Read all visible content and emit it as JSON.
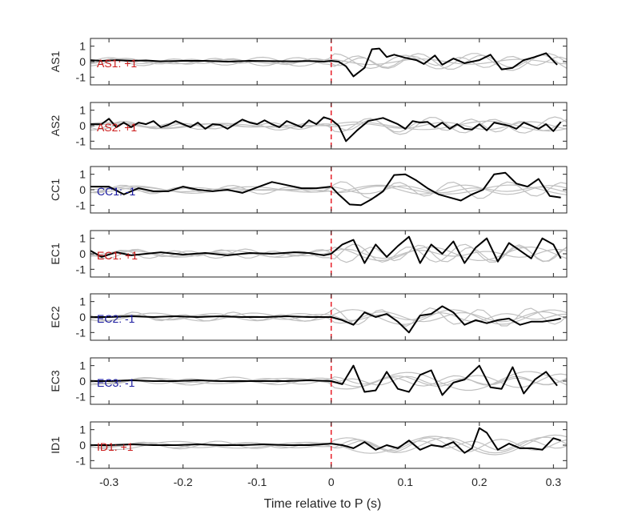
{
  "chart_data": {
    "type": "line",
    "xlabel": "Time relative to P (s)",
    "xlim": [
      -0.325,
      0.318
    ],
    "xticks": [
      -0.3,
      -0.2,
      -0.1,
      0,
      0.1,
      0.2,
      0.3
    ],
    "xtick_labels": [
      "-0.3",
      "-0.2",
      "-0.1",
      "0",
      "0.1",
      "0.2",
      "0.3"
    ],
    "ylim": [
      -1.5,
      1.5
    ],
    "yticks": [
      -1,
      0,
      1
    ],
    "ytick_labels": [
      "-1",
      "0",
      "1"
    ],
    "grid": false,
    "vertical_marker": {
      "x": 0,
      "color": "#e8202a",
      "style": "dashed"
    },
    "colors": {
      "main": "#000000",
      "background": "#c0c0c0",
      "positive": "#cc1a1a",
      "negative": "#1a1aa0",
      "axes": "#262626"
    },
    "panels": [
      {
        "ylabel": "AS1",
        "annotation": "AS1: +1",
        "annotation_color": "#cc1a1a",
        "series": [
          {
            "x": [
              -0.325,
              -0.31,
              -0.29,
              -0.27,
              -0.25,
              -0.23,
              -0.2,
              -0.17,
              -0.14,
              -0.11,
              -0.08,
              -0.05,
              -0.03,
              -0.01,
              0,
              0.01,
              0.02,
              0.03,
              0.045,
              0.055,
              0.065,
              0.075,
              0.085,
              0.1,
              0.115,
              0.125,
              0.14,
              0.15,
              0.165,
              0.18,
              0.2,
              0.215,
              0.23,
              0.245,
              0.26,
              0.275,
              0.29,
              0.305
            ],
            "y": [
              0.1,
              0.05,
              0.1,
              0.05,
              0.08,
              0.02,
              0.05,
              0.05,
              0.0,
              0.05,
              0.03,
              0.02,
              0.04,
              0.0,
              0.05,
              0.0,
              -0.3,
              -0.95,
              -0.4,
              0.8,
              0.85,
              0.3,
              0.45,
              0.25,
              0.1,
              -0.15,
              0.4,
              -0.2,
              0.2,
              -0.1,
              0.1,
              0.45,
              -0.5,
              -0.4,
              0.1,
              0.3,
              0.55,
              -0.2
            ]
          }
        ]
      },
      {
        "ylabel": "AS2",
        "annotation": "AS2: +1",
        "annotation_color": "#cc1a1a",
        "series": [
          {
            "x": [
              -0.325,
              -0.31,
              -0.3,
              -0.29,
              -0.28,
              -0.27,
              -0.26,
              -0.25,
              -0.24,
              -0.23,
              -0.22,
              -0.21,
              -0.2,
              -0.19,
              -0.18,
              -0.17,
              -0.16,
              -0.15,
              -0.14,
              -0.13,
              -0.12,
              -0.11,
              -0.1,
              -0.09,
              -0.08,
              -0.07,
              -0.06,
              -0.05,
              -0.04,
              -0.03,
              -0.02,
              -0.01,
              0,
              0.01,
              0.02,
              0.035,
              0.05,
              0.07,
              0.08,
              0.09,
              0.1,
              0.11,
              0.12,
              0.13,
              0.14,
              0.15,
              0.16,
              0.17,
              0.18,
              0.19,
              0.2,
              0.21,
              0.22,
              0.23,
              0.24,
              0.25,
              0.26,
              0.27,
              0.28,
              0.29,
              0.3,
              0.31
            ],
            "y": [
              0.1,
              0.1,
              0.45,
              -0.1,
              0.2,
              -0.1,
              0.2,
              0.1,
              0.3,
              -0.1,
              0.05,
              0.3,
              0.1,
              -0.1,
              0.2,
              -0.2,
              0.1,
              0.05,
              -0.2,
              0.1,
              0.4,
              0.2,
              0.1,
              0.35,
              0.1,
              -0.1,
              0.3,
              0.1,
              -0.1,
              0.35,
              0.1,
              0.55,
              0.4,
              0.0,
              -1.0,
              -0.3,
              0.3,
              0.5,
              0.3,
              0.1,
              -0.2,
              0.3,
              0.2,
              0.25,
              -0.1,
              0.2,
              -0.2,
              0.1,
              -0.2,
              -0.25,
              0.1,
              -0.3,
              0.2,
              0.1,
              0.0,
              -0.2,
              0.2,
              0.0,
              -0.2,
              0.1,
              -0.35,
              0.25
            ]
          }
        ]
      },
      {
        "ylabel": "CC1",
        "annotation": "CC1: -1",
        "annotation_color": "#1a1aa0",
        "series": [
          {
            "x": [
              -0.325,
              -0.3,
              -0.28,
              -0.26,
              -0.24,
              -0.22,
              -0.2,
              -0.18,
              -0.16,
              -0.14,
              -0.12,
              -0.1,
              -0.08,
              -0.06,
              -0.04,
              -0.02,
              0,
              0.01,
              0.025,
              0.04,
              0.055,
              0.07,
              0.085,
              0.1,
              0.115,
              0.13,
              0.145,
              0.16,
              0.175,
              0.19,
              0.205,
              0.22,
              0.235,
              0.25,
              0.265,
              0.28,
              0.295,
              0.31
            ],
            "y": [
              0.2,
              0.2,
              -0.3,
              0.1,
              -0.1,
              -0.1,
              0.2,
              0.0,
              -0.1,
              0.0,
              -0.2,
              0.15,
              0.5,
              0.3,
              0.1,
              0.1,
              0.2,
              -0.3,
              -0.95,
              -1.0,
              -0.6,
              -0.1,
              0.95,
              1.0,
              0.6,
              0.1,
              -0.3,
              -0.5,
              -0.7,
              -0.3,
              0.0,
              1.0,
              1.1,
              0.4,
              0.2,
              0.7,
              -0.4,
              -0.5
            ]
          }
        ]
      },
      {
        "ylabel": "EC1",
        "annotation": "EC1: +1",
        "annotation_color": "#cc1a1a",
        "series": [
          {
            "x": [
              -0.325,
              -0.31,
              -0.29,
              -0.27,
              -0.25,
              -0.23,
              -0.2,
              -0.17,
              -0.14,
              -0.11,
              -0.08,
              -0.05,
              -0.03,
              -0.01,
              0,
              0.015,
              0.03,
              0.045,
              0.06,
              0.075,
              0.09,
              0.105,
              0.12,
              0.135,
              0.15,
              0.165,
              0.18,
              0.195,
              0.21,
              0.225,
              0.24,
              0.255,
              0.27,
              0.285,
              0.3,
              0.31
            ],
            "y": [
              0.2,
              -0.2,
              0.1,
              -0.1,
              0.0,
              0.1,
              -0.05,
              0.05,
              -0.1,
              0.05,
              0.0,
              0.1,
              0.05,
              -0.1,
              0.0,
              0.6,
              0.9,
              -0.6,
              0.6,
              -0.2,
              0.5,
              1.1,
              -0.6,
              0.6,
              0.0,
              0.8,
              -0.6,
              0.4,
              1.0,
              -0.5,
              0.7,
              0.2,
              -0.3,
              1.0,
              0.6,
              -0.3
            ]
          }
        ]
      },
      {
        "ylabel": "EC2",
        "annotation": "EC2: -1",
        "annotation_color": "#1a1aa0",
        "series": [
          {
            "x": [
              -0.325,
              -0.3,
              -0.27,
              -0.24,
              -0.21,
              -0.18,
              -0.15,
              -0.12,
              -0.09,
              -0.06,
              -0.03,
              0,
              0.015,
              0.03,
              0.045,
              0.06,
              0.075,
              0.09,
              0.105,
              0.12,
              0.135,
              0.15,
              0.165,
              0.18,
              0.195,
              0.21,
              0.225,
              0.24,
              0.255,
              0.27,
              0.285,
              0.3,
              0.31
            ],
            "y": [
              0.0,
              0.0,
              0.05,
              0.0,
              0.05,
              0.0,
              0.05,
              0.0,
              0.0,
              0.05,
              0.0,
              0.0,
              -0.2,
              -0.5,
              0.3,
              0.0,
              0.2,
              -0.3,
              -1.0,
              0.1,
              0.2,
              0.7,
              0.3,
              -0.5,
              -0.2,
              -0.4,
              -0.2,
              -0.1,
              -0.5,
              -0.3,
              -0.3,
              -0.2,
              -0.1
            ]
          }
        ]
      },
      {
        "ylabel": "EC3",
        "annotation": "EC3: -1",
        "annotation_color": "#1a1aa0",
        "series": [
          {
            "x": [
              -0.325,
              -0.3,
              -0.27,
              -0.24,
              -0.21,
              -0.18,
              -0.15,
              -0.12,
              -0.09,
              -0.06,
              -0.03,
              0,
              0.015,
              0.03,
              0.045,
              0.06,
              0.075,
              0.09,
              0.105,
              0.12,
              0.135,
              0.15,
              0.165,
              0.18,
              0.2,
              0.215,
              0.23,
              0.245,
              0.26,
              0.275,
              0.29,
              0.305
            ],
            "y": [
              0.0,
              0.0,
              0.05,
              0.0,
              0.0,
              0.05,
              0.0,
              0.0,
              0.0,
              0.0,
              0.05,
              0.0,
              -0.2,
              1.0,
              -0.7,
              -0.6,
              0.6,
              -0.5,
              -0.7,
              0.4,
              0.7,
              -0.9,
              -0.1,
              0.1,
              1.0,
              -0.4,
              -0.5,
              0.9,
              -0.8,
              0.1,
              0.6,
              -0.3
            ]
          }
        ]
      },
      {
        "ylabel": "ID1",
        "annotation": "ID1: +1",
        "annotation_color": "#cc1a1a",
        "series": [
          {
            "x": [
              -0.325,
              -0.3,
              -0.27,
              -0.24,
              -0.21,
              -0.18,
              -0.15,
              -0.12,
              -0.09,
              -0.06,
              -0.03,
              0,
              0.015,
              0.03,
              0.045,
              0.06,
              0.075,
              0.09,
              0.105,
              0.12,
              0.135,
              0.15,
              0.165,
              0.18,
              0.19,
              0.2,
              0.21,
              0.225,
              0.24,
              0.255,
              0.27,
              0.285,
              0.3,
              0.31
            ],
            "y": [
              0.0,
              0.0,
              0.05,
              0.0,
              0.0,
              0.05,
              0.0,
              0.0,
              0.05,
              0.0,
              0.0,
              0.1,
              0.0,
              -0.2,
              0.2,
              -0.3,
              0.0,
              -0.2,
              0.3,
              -0.3,
              0.0,
              -0.1,
              0.2,
              -0.5,
              -0.2,
              1.1,
              0.8,
              -0.3,
              0.1,
              -0.2,
              -0.2,
              -0.3,
              0.45,
              0.3
            ]
          }
        ]
      }
    ]
  }
}
